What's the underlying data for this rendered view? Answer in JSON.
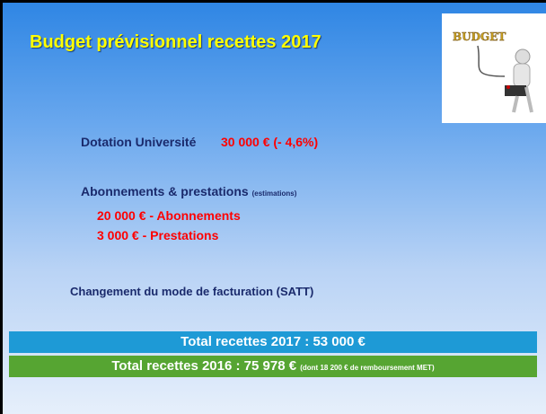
{
  "title": "Budget prévisionnel recettes 2017",
  "image_text": "BUDGET",
  "items": [
    {
      "label": "Dotation Université",
      "value": "30 000 € (- 4,6%)"
    },
    {
      "label": "Abonnements & prestations",
      "note": "(estimations)",
      "lines": [
        "20 000 € - Abonnements",
        "3 000 € - Prestations"
      ]
    },
    {
      "label": "Changement du mode de facturation (SATT)"
    }
  ],
  "totals": [
    {
      "text": "Total recettes 2017 : 53 000 €"
    },
    {
      "text": "Total recettes 2016 : 75 978 €",
      "note": "(dont 18 200 € de remboursement MET)"
    }
  ]
}
